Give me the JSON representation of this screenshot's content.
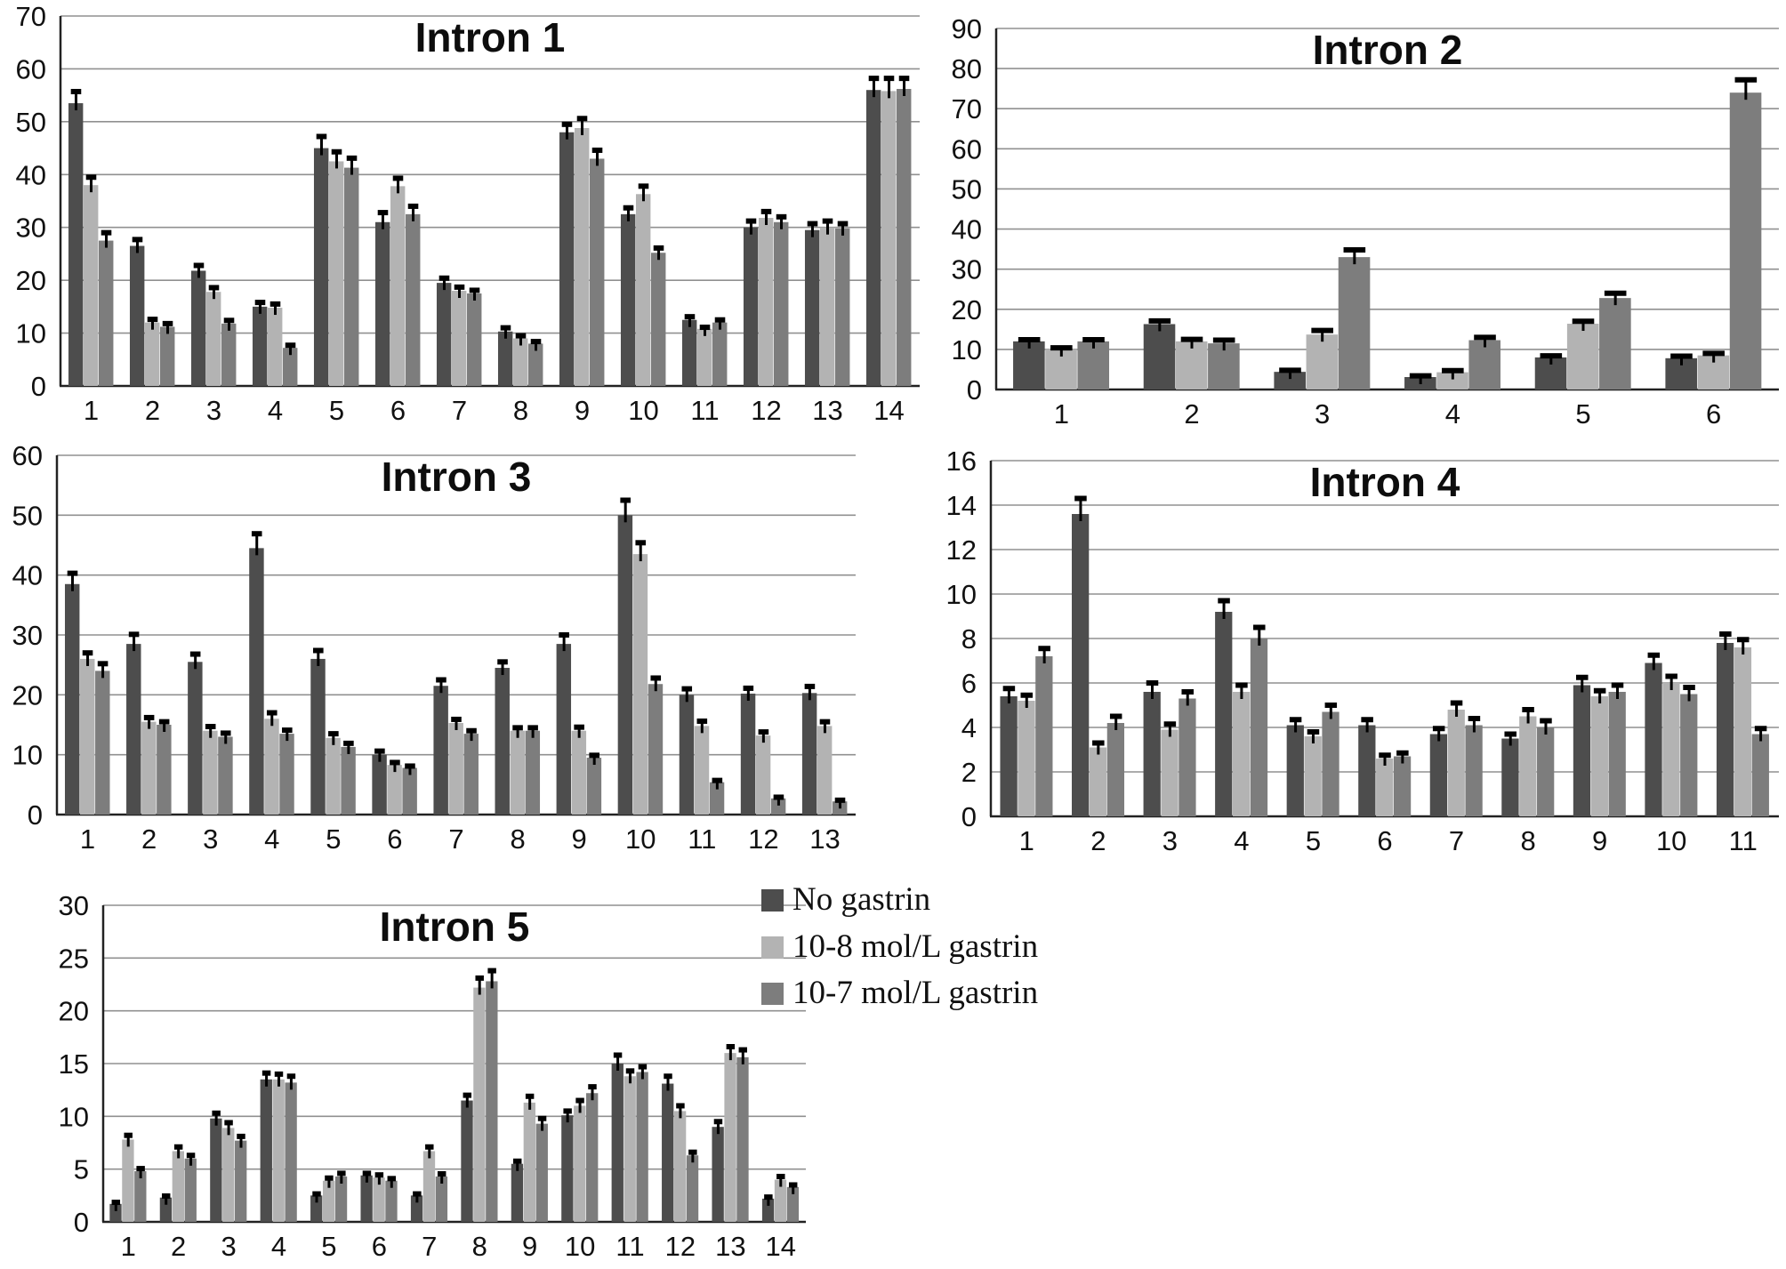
{
  "figure": {
    "background": "#ffffff",
    "panel_titles": [
      "Intron 1",
      "Intron 2",
      "Intron 3",
      "Intron 4",
      "Intron 5"
    ]
  },
  "legend": {
    "position": "right-of-intron5",
    "items": [
      {
        "label": "No gastrin",
        "color": "#4d4d4d"
      },
      {
        "label": "10-8 mol/L gastrin",
        "color": "#b3b3b3"
      },
      {
        "label": "10-7 mol/L gastrin",
        "color": "#7d7d7d"
      }
    ]
  },
  "style": {
    "gridline_color": "#909090",
    "axis_color": "#222222",
    "error_bar_color": "#000000",
    "title_color": "#0d0d0d"
  },
  "chart_data": [
    {
      "type": "bar",
      "title": "Intron 1",
      "categories": [
        "1",
        "2",
        "3",
        "4",
        "5",
        "6",
        "7",
        "8",
        "9",
        "10",
        "11",
        "12",
        "13",
        "14"
      ],
      "ylim": [
        0,
        70
      ],
      "ytick_step": 10,
      "grid": true,
      "legend_position": "none",
      "series": [
        {
          "name": "No gastrin",
          "color": "#4d4d4d",
          "values": [
            53.5,
            26.5,
            21.8,
            15.0,
            45.0,
            31.0,
            19.5,
            10.3,
            48.0,
            32.5,
            12.5,
            30.0,
            29.5,
            56.0
          ],
          "errors": [
            2.2,
            1.2,
            1.0,
            0.8,
            2.2,
            1.8,
            0.9,
            0.7,
            1.5,
            1.2,
            0.6,
            1.2,
            1.2,
            2.2
          ]
        },
        {
          "name": "10-8 mol/L gastrin",
          "color": "#b3b3b3",
          "values": [
            38.0,
            12.0,
            17.8,
            14.8,
            42.5,
            37.8,
            18.0,
            9.0,
            48.8,
            36.3,
            10.8,
            31.8,
            30.0,
            55.8
          ],
          "errors": [
            1.5,
            0.6,
            0.8,
            0.7,
            1.8,
            1.5,
            0.7,
            0.5,
            1.8,
            1.5,
            0.3,
            1.2,
            1.2,
            2.4
          ]
        },
        {
          "name": "10-7 mol/L gastrin",
          "color": "#7d7d7d",
          "values": [
            27.5,
            11.2,
            11.8,
            7.2,
            41.3,
            32.5,
            17.5,
            8.0,
            43.0,
            25.2,
            12.0,
            31.0,
            29.8,
            56.2
          ],
          "errors": [
            1.5,
            0.6,
            0.6,
            0.5,
            1.8,
            1.5,
            0.6,
            0.4,
            1.6,
            0.9,
            0.5,
            1.0,
            0.9,
            2.0
          ]
        }
      ]
    },
    {
      "type": "bar",
      "title": "Intron 2",
      "categories": [
        "1",
        "2",
        "3",
        "4",
        "5",
        "6"
      ],
      "ylim": [
        0,
        90
      ],
      "ytick_step": 10,
      "grid": true,
      "legend_position": "none",
      "series": [
        {
          "name": "No gastrin",
          "color": "#4d4d4d",
          "values": [
            12.0,
            16.3,
            4.4,
            3.1,
            8.0,
            7.8
          ],
          "errors": [
            0.4,
            0.8,
            0.4,
            0.3,
            0.4,
            0.5
          ]
        },
        {
          "name": "10-8 mol/L gastrin",
          "color": "#b3b3b3",
          "values": [
            10.0,
            12.0,
            13.7,
            4.3,
            16.4,
            8.5
          ],
          "errors": [
            0.4,
            0.5,
            1.0,
            0.4,
            0.6,
            0.5
          ]
        },
        {
          "name": "10-7 mol/L gastrin",
          "color": "#7d7d7d",
          "values": [
            12.0,
            11.5,
            33.0,
            12.3,
            22.8,
            74.0
          ],
          "errors": [
            0.4,
            0.8,
            1.8,
            0.7,
            1.2,
            3.2
          ]
        }
      ]
    },
    {
      "type": "bar",
      "title": "Intron 3",
      "categories": [
        "1",
        "2",
        "3",
        "4",
        "5",
        "6",
        "7",
        "8",
        "9",
        "10",
        "11",
        "12",
        "13"
      ],
      "ylim": [
        0,
        60
      ],
      "ytick_step": 10,
      "grid": true,
      "legend_position": "none",
      "series": [
        {
          "name": "No gastrin",
          "color": "#4d4d4d",
          "values": [
            38.5,
            28.5,
            25.5,
            44.5,
            26.0,
            10.0,
            21.5,
            24.5,
            28.5,
            50.0,
            20.0,
            20.2,
            20.3
          ],
          "errors": [
            1.8,
            1.6,
            1.3,
            2.4,
            1.4,
            0.6,
            1.0,
            1.0,
            1.5,
            2.5,
            1.0,
            0.9,
            1.1
          ]
        },
        {
          "name": "10-8 mol/L gastrin",
          "color": "#b3b3b3",
          "values": [
            26.0,
            15.5,
            14.0,
            16.0,
            12.8,
            8.3,
            15.3,
            14.0,
            14.0,
            43.5,
            14.8,
            13.2,
            14.8
          ],
          "errors": [
            1.0,
            0.7,
            0.7,
            1.0,
            0.7,
            0.4,
            0.6,
            0.5,
            0.6,
            1.9,
            0.8,
            0.6,
            0.7
          ]
        },
        {
          "name": "10-7 mol/L gastrin",
          "color": "#7d7d7d",
          "values": [
            24.0,
            15.0,
            13.0,
            13.5,
            11.3,
            7.8,
            13.5,
            14.0,
            9.5,
            21.8,
            5.4,
            2.7,
            2.2
          ],
          "errors": [
            1.2,
            0.5,
            0.6,
            0.6,
            0.6,
            0.3,
            0.5,
            0.5,
            0.4,
            1.0,
            0.3,
            0.2,
            0.2
          ]
        }
      ]
    },
    {
      "type": "bar",
      "title": "Intron 4",
      "categories": [
        "1",
        "2",
        "3",
        "4",
        "5",
        "6",
        "7",
        "8",
        "9",
        "10",
        "11"
      ],
      "ylim": [
        0,
        16
      ],
      "ytick_step": 2,
      "grid": true,
      "legend_position": "none",
      "series": [
        {
          "name": "No gastrin",
          "color": "#4d4d4d",
          "values": [
            5.4,
            13.6,
            5.6,
            9.2,
            4.1,
            4.1,
            3.7,
            3.5,
            5.9,
            6.9,
            7.8
          ],
          "errors": [
            0.35,
            0.7,
            0.4,
            0.5,
            0.25,
            0.25,
            0.25,
            0.2,
            0.35,
            0.35,
            0.4
          ]
        },
        {
          "name": "10-8 mol/L gastrin",
          "color": "#b3b3b3",
          "values": [
            5.2,
            3.1,
            3.9,
            5.6,
            3.6,
            2.6,
            4.8,
            4.5,
            5.4,
            6.0,
            7.6
          ],
          "errors": [
            0.25,
            0.2,
            0.25,
            0.3,
            0.2,
            0.15,
            0.3,
            0.3,
            0.25,
            0.3,
            0.35
          ]
        },
        {
          "name": "10-7 mol/L gastrin",
          "color": "#7d7d7d",
          "values": [
            7.2,
            4.2,
            5.3,
            8.0,
            4.7,
            2.7,
            4.1,
            4.0,
            5.6,
            5.5,
            3.7
          ],
          "errors": [
            0.35,
            0.3,
            0.3,
            0.5,
            0.3,
            0.15,
            0.3,
            0.3,
            0.3,
            0.3,
            0.25
          ]
        }
      ]
    },
    {
      "type": "bar",
      "title": "Intron 5",
      "categories": [
        "1",
        "2",
        "3",
        "4",
        "5",
        "6",
        "7",
        "8",
        "9",
        "10",
        "11",
        "12",
        "13",
        "14"
      ],
      "ylim": [
        0,
        30
      ],
      "ytick_step": 5,
      "grid": true,
      "legend_position": "right",
      "series": [
        {
          "name": "No gastrin",
          "color": "#4d4d4d",
          "values": [
            1.7,
            2.3,
            9.8,
            13.5,
            2.5,
            4.4,
            2.5,
            11.5,
            5.5,
            10.1,
            15.0,
            13.1,
            9.0,
            2.2
          ],
          "errors": [
            0.15,
            0.15,
            0.5,
            0.6,
            0.15,
            0.2,
            0.15,
            0.5,
            0.25,
            0.4,
            0.8,
            0.7,
            0.5,
            0.15
          ]
        },
        {
          "name": "10-8 mol/L gastrin",
          "color": "#b3b3b3",
          "values": [
            7.8,
            6.7,
            8.9,
            13.5,
            3.9,
            4.2,
            6.7,
            22.2,
            11.3,
            11.0,
            13.8,
            10.5,
            16.0,
            4.0
          ],
          "errors": [
            0.4,
            0.4,
            0.5,
            0.5,
            0.25,
            0.25,
            0.4,
            0.9,
            0.6,
            0.5,
            0.5,
            0.5,
            0.6,
            0.3
          ]
        },
        {
          "name": "10-7 mol/L gastrin",
          "color": "#7d7d7d",
          "values": [
            4.8,
            6.0,
            7.7,
            13.2,
            4.3,
            3.9,
            4.3,
            22.8,
            9.3,
            12.2,
            14.2,
            6.3,
            15.6,
            3.3
          ],
          "errors": [
            0.25,
            0.3,
            0.4,
            0.6,
            0.3,
            0.2,
            0.25,
            1.0,
            0.5,
            0.6,
            0.5,
            0.3,
            0.7,
            0.2
          ]
        }
      ]
    }
  ]
}
